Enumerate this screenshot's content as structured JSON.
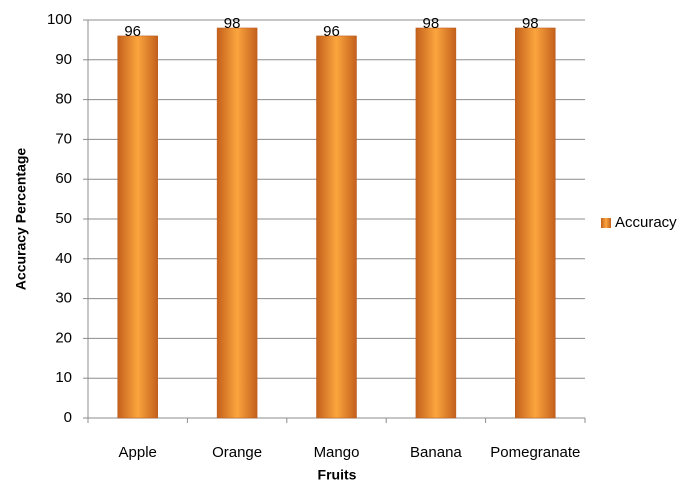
{
  "chart_data": {
    "type": "bar",
    "categories": [
      "Apple",
      "Orange",
      "Mango",
      "Banana",
      "Pomegranate"
    ],
    "series": [
      {
        "name": "Accuracy",
        "color": "#f79646",
        "values": [
          96,
          98,
          96,
          98,
          98
        ]
      }
    ],
    "x_label": "Fruits",
    "y_label": "Accuracy Percentage",
    "ylim": [
      0,
      100
    ],
    "yticks": [
      0,
      10,
      20,
      30,
      40,
      50,
      60,
      70,
      80,
      90,
      100
    ],
    "grid": true,
    "legend": "right"
  }
}
